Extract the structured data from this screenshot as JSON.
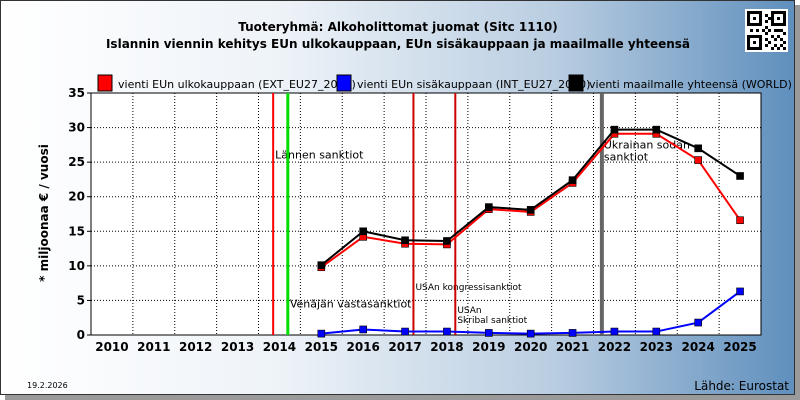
{
  "chart_data": {
    "type": "line",
    "title": "Tuoteryhmä: Alkoholittomat juomat (Sitc 1110)",
    "subtitle": "Islannin viennin kehitys EUn ulkokauppaan, EUn sisäkauppaan ja maailmalle yhteensä",
    "ylabel": "* miljoonaa € / vuosi",
    "ylim": [
      0,
      35
    ],
    "yticks": [
      0,
      5,
      10,
      15,
      20,
      25,
      30,
      35
    ],
    "categories": [
      "2010",
      "2011",
      "2012",
      "2013",
      "2014",
      "2015",
      "2016",
      "2017",
      "2018",
      "2019",
      "2020",
      "2021",
      "2022",
      "2023",
      "2024",
      "2025"
    ],
    "grid": true,
    "legend_position": "top",
    "series": [
      {
        "name": "vienti EUn ulkokauppaan (EXT_EU27_2020)",
        "color": "#ff0000",
        "values": [
          null,
          null,
          null,
          null,
          null,
          9.8,
          14.2,
          13.2,
          13.1,
          18.2,
          17.8,
          22.0,
          29.1,
          29.1,
          25.3,
          16.6
        ]
      },
      {
        "name": "vienti EUn sisäkauppaan (INT_EU27_2020)",
        "color": "#0000ff",
        "values": [
          null,
          null,
          null,
          null,
          null,
          0.2,
          0.8,
          0.5,
          0.5,
          0.3,
          0.2,
          0.3,
          0.5,
          0.5,
          1.8,
          6.3
        ]
      },
      {
        "name": "vienti maailmalle yhteensä (WORLD)",
        "color": "#000000",
        "values": [
          null,
          null,
          null,
          null,
          null,
          10.1,
          15.0,
          13.7,
          13.6,
          18.5,
          18.1,
          22.4,
          29.7,
          29.7,
          27.0,
          23.0
        ]
      }
    ],
    "annotations": [
      {
        "label": "Lännen sanktiot",
        "x": 2013.85,
        "color": "#ff0000",
        "label_y": 25.5
      },
      {
        "label": "Venäjän vastasanktiot",
        "x": 2014.2,
        "color": "#00dd00",
        "label_y": 4.0
      },
      {
        "label": "USAn kongressisanktiot",
        "x": 2017.2,
        "color": "#cc0000",
        "label_y": 6.5,
        "small": true
      },
      {
        "label": "USAn Skribal sanktiot",
        "x": 2018.2,
        "color": "#cc0000",
        "label_y": 3.2,
        "small": true
      },
      {
        "label": "Ukrainan sodan sanktiot",
        "x": 2021.7,
        "color": "#666666",
        "label_y": 27.0
      }
    ]
  },
  "footer": {
    "date": "19.2.2026",
    "source": "Lähde: Eurostat"
  }
}
